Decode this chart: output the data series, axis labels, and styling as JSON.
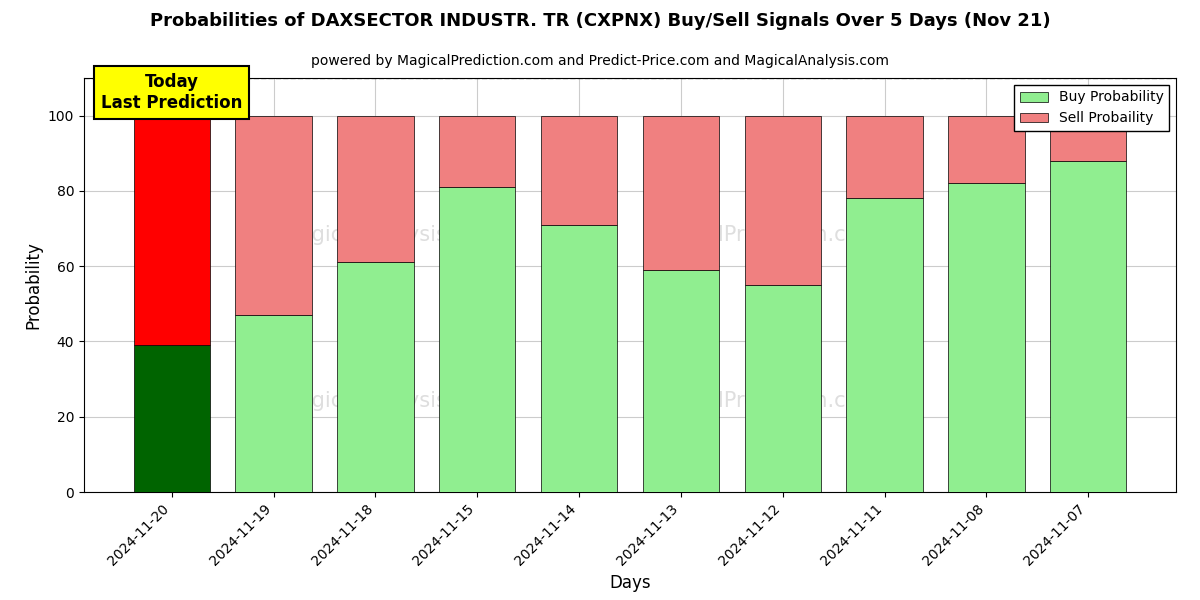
{
  "title": "Probabilities of DAXSECTOR INDUSTR. TR (CXPNX) Buy/Sell Signals Over 5 Days (Nov 21)",
  "subtitle": "powered by MagicalPrediction.com and Predict-Price.com and MagicalAnalysis.com",
  "xlabel": "Days",
  "ylabel": "Probability",
  "dates": [
    "2024-11-20",
    "2024-11-19",
    "2024-11-18",
    "2024-11-15",
    "2024-11-14",
    "2024-11-13",
    "2024-11-12",
    "2024-11-11",
    "2024-11-08",
    "2024-11-07"
  ],
  "buy_probs": [
    39,
    47,
    61,
    81,
    71,
    59,
    55,
    78,
    82,
    88
  ],
  "sell_probs": [
    61,
    53,
    39,
    19,
    29,
    41,
    45,
    22,
    18,
    12
  ],
  "today_bar_buy_color": "#006400",
  "today_bar_sell_color": "#ff0000",
  "other_bar_buy_color": "#90EE90",
  "other_bar_sell_color": "#F08080",
  "today_label_bg": "#ffff00",
  "today_label_text": "Today\nLast Prediction",
  "legend_buy_label": "Buy Probability",
  "legend_sell_label": "Sell Probaility",
  "ylim": [
    0,
    110
  ],
  "yticks": [
    0,
    20,
    40,
    60,
    80,
    100
  ],
  "dashed_line_y": 110,
  "background_color": "#ffffff",
  "grid_color": "#cccccc"
}
